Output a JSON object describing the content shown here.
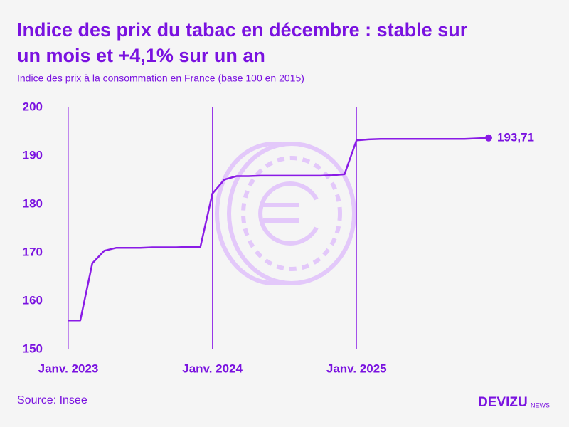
{
  "chart_data": {
    "type": "line",
    "title": "Indice des prix du tabac en décembre : stable sur un mois et +4,1% sur un an",
    "subtitle": "Indice des prix à la consommation en France (base 100 en 2015)",
    "source": "Source: Insee",
    "brand": "DEVIZU",
    "brand_suffix": "NEWS",
    "categories": [
      "Janv. 2023",
      null,
      null,
      null,
      null,
      null,
      null,
      null,
      null,
      null,
      null,
      null,
      "Janv. 2024",
      null,
      null,
      null,
      null,
      null,
      null,
      null,
      null,
      null,
      null,
      null,
      "Janv. 2025",
      null,
      null,
      null,
      null,
      null,
      null,
      null,
      null,
      null,
      null,
      null
    ],
    "series": [
      {
        "name": "Indice des prix du tabac",
        "color": "#8a1be6",
        "values": [
          156.0,
          156.0,
          167.8,
          170.4,
          171.0,
          171.0,
          171.0,
          171.1,
          171.1,
          171.1,
          171.2,
          171.2,
          182.2,
          185.1,
          185.8,
          185.8,
          185.9,
          185.9,
          185.9,
          185.9,
          185.9,
          185.9,
          186.0,
          186.2,
          193.2,
          193.4,
          193.5,
          193.5,
          193.5,
          193.5,
          193.5,
          193.5,
          193.5,
          193.5,
          193.6,
          193.71
        ],
        "value_labels": [
          null,
          null,
          null,
          null,
          null,
          null,
          null,
          null,
          null,
          null,
          null,
          null,
          null,
          null,
          null,
          null,
          null,
          null,
          null,
          null,
          null,
          null,
          null,
          null,
          null,
          null,
          null,
          null,
          null,
          null,
          null,
          null,
          null,
          null,
          null,
          "193,71"
        ]
      }
    ],
    "ylim": [
      150,
      200
    ],
    "yticks": [
      150,
      160,
      170,
      180,
      190,
      200
    ],
    "grid": true
  }
}
